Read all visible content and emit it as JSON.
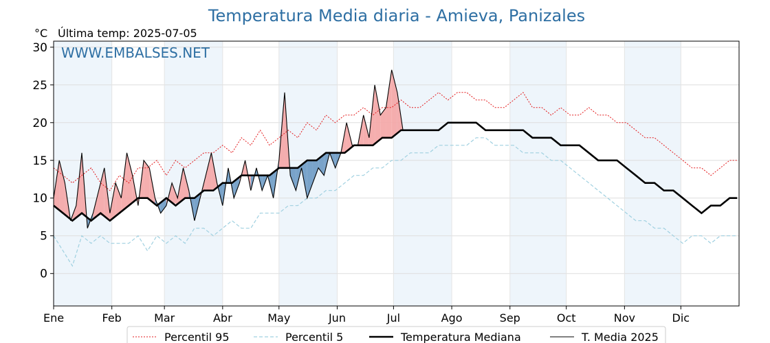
{
  "chart_data": {
    "type": "line",
    "title": "Temperatura Media diaria - Amieva, Panizales",
    "unit_label": "°C",
    "last_temp_label": "Última temp: 2025-07-05",
    "watermark": "WWW.EMBALSES.NET",
    "ylim": [
      -4.3,
      30.8
    ],
    "yticks": [
      0,
      5,
      10,
      15,
      20,
      25,
      30
    ],
    "xlim": [
      0,
      365
    ],
    "grid": true,
    "legend_position": "bottom",
    "months": [
      {
        "label": "Ene",
        "start": 0
      },
      {
        "label": "Feb",
        "start": 31
      },
      {
        "label": "Mar",
        "start": 59
      },
      {
        "label": "Abr",
        "start": 90
      },
      {
        "label": "May",
        "start": 120
      },
      {
        "label": "Jun",
        "start": 151
      },
      {
        "label": "Jul",
        "start": 181
      },
      {
        "label": "Ago",
        "start": 212
      },
      {
        "label": "Sep",
        "start": 243
      },
      {
        "label": "Oct",
        "start": 273
      },
      {
        "label": "Nov",
        "start": 304
      },
      {
        "label": "Dic",
        "start": 334
      }
    ],
    "shaded_month_bands": [
      [
        0,
        31
      ],
      [
        59,
        90
      ],
      [
        120,
        151
      ],
      [
        181,
        212
      ],
      [
        243,
        273
      ],
      [
        304,
        334
      ]
    ],
    "series": [
      {
        "name": "Percentil 95",
        "color": "#e31a1c",
        "style": "dotted",
        "x": [
          0,
          5,
          10,
          15,
          20,
          25,
          30,
          35,
          40,
          45,
          50,
          55,
          60,
          65,
          70,
          75,
          80,
          85,
          90,
          95,
          100,
          105,
          110,
          115,
          120,
          125,
          130,
          135,
          140,
          145,
          150,
          155,
          160,
          165,
          170,
          175,
          180,
          185,
          190,
          195,
          200,
          205,
          210,
          215,
          220,
          225,
          230,
          235,
          240,
          245,
          250,
          255,
          260,
          265,
          270,
          275,
          280,
          285,
          290,
          295,
          300,
          305,
          310,
          315,
          320,
          325,
          330,
          335,
          340,
          345,
          350,
          355,
          360,
          364
        ],
        "y": [
          14,
          13,
          12,
          13,
          14,
          12,
          11,
          13,
          12,
          14,
          14,
          15,
          13,
          15,
          14,
          15,
          16,
          16,
          17,
          16,
          18,
          17,
          19,
          17,
          18,
          19,
          18,
          20,
          19,
          21,
          20,
          21,
          21,
          22,
          21,
          22,
          22,
          23,
          22,
          22,
          23,
          24,
          23,
          24,
          24,
          23,
          23,
          22,
          22,
          23,
          24,
          22,
          22,
          21,
          22,
          21,
          21,
          22,
          21,
          21,
          20,
          20,
          19,
          18,
          18,
          17,
          16,
          15,
          14,
          14,
          13,
          14,
          15,
          15
        ]
      },
      {
        "name": "Percentil 5",
        "color": "#9fd0e0",
        "style": "dashed",
        "x": [
          0,
          5,
          10,
          15,
          20,
          25,
          30,
          35,
          40,
          45,
          50,
          55,
          60,
          65,
          70,
          75,
          80,
          85,
          90,
          95,
          100,
          105,
          110,
          115,
          120,
          125,
          130,
          135,
          140,
          145,
          150,
          155,
          160,
          165,
          170,
          175,
          180,
          185,
          190,
          195,
          200,
          205,
          210,
          215,
          220,
          225,
          230,
          235,
          240,
          245,
          250,
          255,
          260,
          265,
          270,
          275,
          280,
          285,
          290,
          295,
          300,
          305,
          310,
          315,
          320,
          325,
          330,
          335,
          340,
          345,
          350,
          355,
          360,
          364
        ],
        "y": [
          5,
          3,
          1,
          5,
          4,
          5,
          4,
          4,
          4,
          5,
          3,
          5,
          4,
          5,
          4,
          6,
          6,
          5,
          6,
          7,
          6,
          6,
          8,
          8,
          8,
          9,
          9,
          10,
          10,
          11,
          11,
          12,
          13,
          13,
          14,
          14,
          15,
          15,
          16,
          16,
          16,
          17,
          17,
          17,
          17,
          18,
          18,
          17,
          17,
          17,
          16,
          16,
          16,
          15,
          15,
          14,
          13,
          12,
          11,
          10,
          9,
          8,
          7,
          7,
          6,
          6,
          5,
          4,
          5,
          5,
          4,
          5,
          5,
          5
        ]
      },
      {
        "name": "Temperatura Mediana",
        "color": "#000000",
        "style": "thick",
        "x": [
          0,
          5,
          10,
          15,
          20,
          25,
          30,
          35,
          40,
          45,
          50,
          55,
          60,
          65,
          70,
          75,
          80,
          85,
          90,
          95,
          100,
          105,
          110,
          115,
          120,
          125,
          130,
          135,
          140,
          145,
          150,
          155,
          160,
          165,
          170,
          175,
          180,
          185,
          190,
          195,
          200,
          205,
          210,
          215,
          220,
          225,
          230,
          235,
          240,
          245,
          250,
          255,
          260,
          265,
          270,
          275,
          280,
          285,
          290,
          295,
          300,
          305,
          310,
          315,
          320,
          325,
          330,
          335,
          340,
          345,
          350,
          355,
          360,
          364
        ],
        "y": [
          9,
          8,
          7,
          8,
          7,
          8,
          7,
          8,
          9,
          10,
          10,
          9,
          10,
          9,
          10,
          10,
          11,
          11,
          12,
          12,
          13,
          13,
          13,
          13,
          14,
          14,
          14,
          15,
          15,
          16,
          16,
          16,
          17,
          17,
          17,
          18,
          18,
          19,
          19,
          19,
          19,
          19,
          20,
          20,
          20,
          20,
          19,
          19,
          19,
          19,
          19,
          18,
          18,
          18,
          17,
          17,
          17,
          16,
          15,
          15,
          15,
          14,
          13,
          12,
          12,
          11,
          11,
          10,
          9,
          8,
          9,
          9,
          10,
          10
        ]
      },
      {
        "name": "T. Media 2025",
        "color": "#000000",
        "style": "thin",
        "x": [
          0,
          3,
          6,
          9,
          12,
          15,
          18,
          21,
          24,
          27,
          30,
          33,
          36,
          39,
          42,
          45,
          48,
          51,
          54,
          57,
          60,
          63,
          66,
          69,
          72,
          75,
          78,
          81,
          84,
          87,
          90,
          93,
          96,
          99,
          102,
          105,
          108,
          111,
          114,
          117,
          120,
          123,
          126,
          129,
          132,
          135,
          138,
          141,
          144,
          147,
          150,
          153,
          156,
          159,
          162,
          165,
          168,
          171,
          174,
          177,
          180,
          183,
          186
        ],
        "y": [
          10,
          15,
          12,
          7,
          9,
          16,
          6,
          8,
          11,
          14,
          8,
          12,
          10,
          16,
          13,
          9,
          15,
          14,
          10,
          8,
          9,
          12,
          10,
          14,
          11,
          7,
          10,
          13,
          16,
          12,
          9,
          14,
          10,
          12,
          15,
          11,
          14,
          11,
          13,
          10,
          15,
          24,
          13,
          11,
          14,
          10,
          12,
          14,
          13,
          16,
          14,
          16,
          20,
          17,
          17,
          21,
          18,
          25,
          21,
          22,
          27,
          24,
          19
        ]
      }
    ],
    "legend": [
      {
        "name": "Percentil 95",
        "color": "#e31a1c",
        "style": "dotted"
      },
      {
        "name": "Percentil 5",
        "color": "#9fd0e0",
        "style": "dashed"
      },
      {
        "name": "Temperatura Mediana",
        "color": "#000000",
        "style": "thick"
      },
      {
        "name": "T. Media 2025",
        "color": "#000000",
        "style": "thin"
      }
    ],
    "fill_colors": {
      "above_median": "#f4a5a5",
      "below_median": "#6b9ac4"
    }
  }
}
